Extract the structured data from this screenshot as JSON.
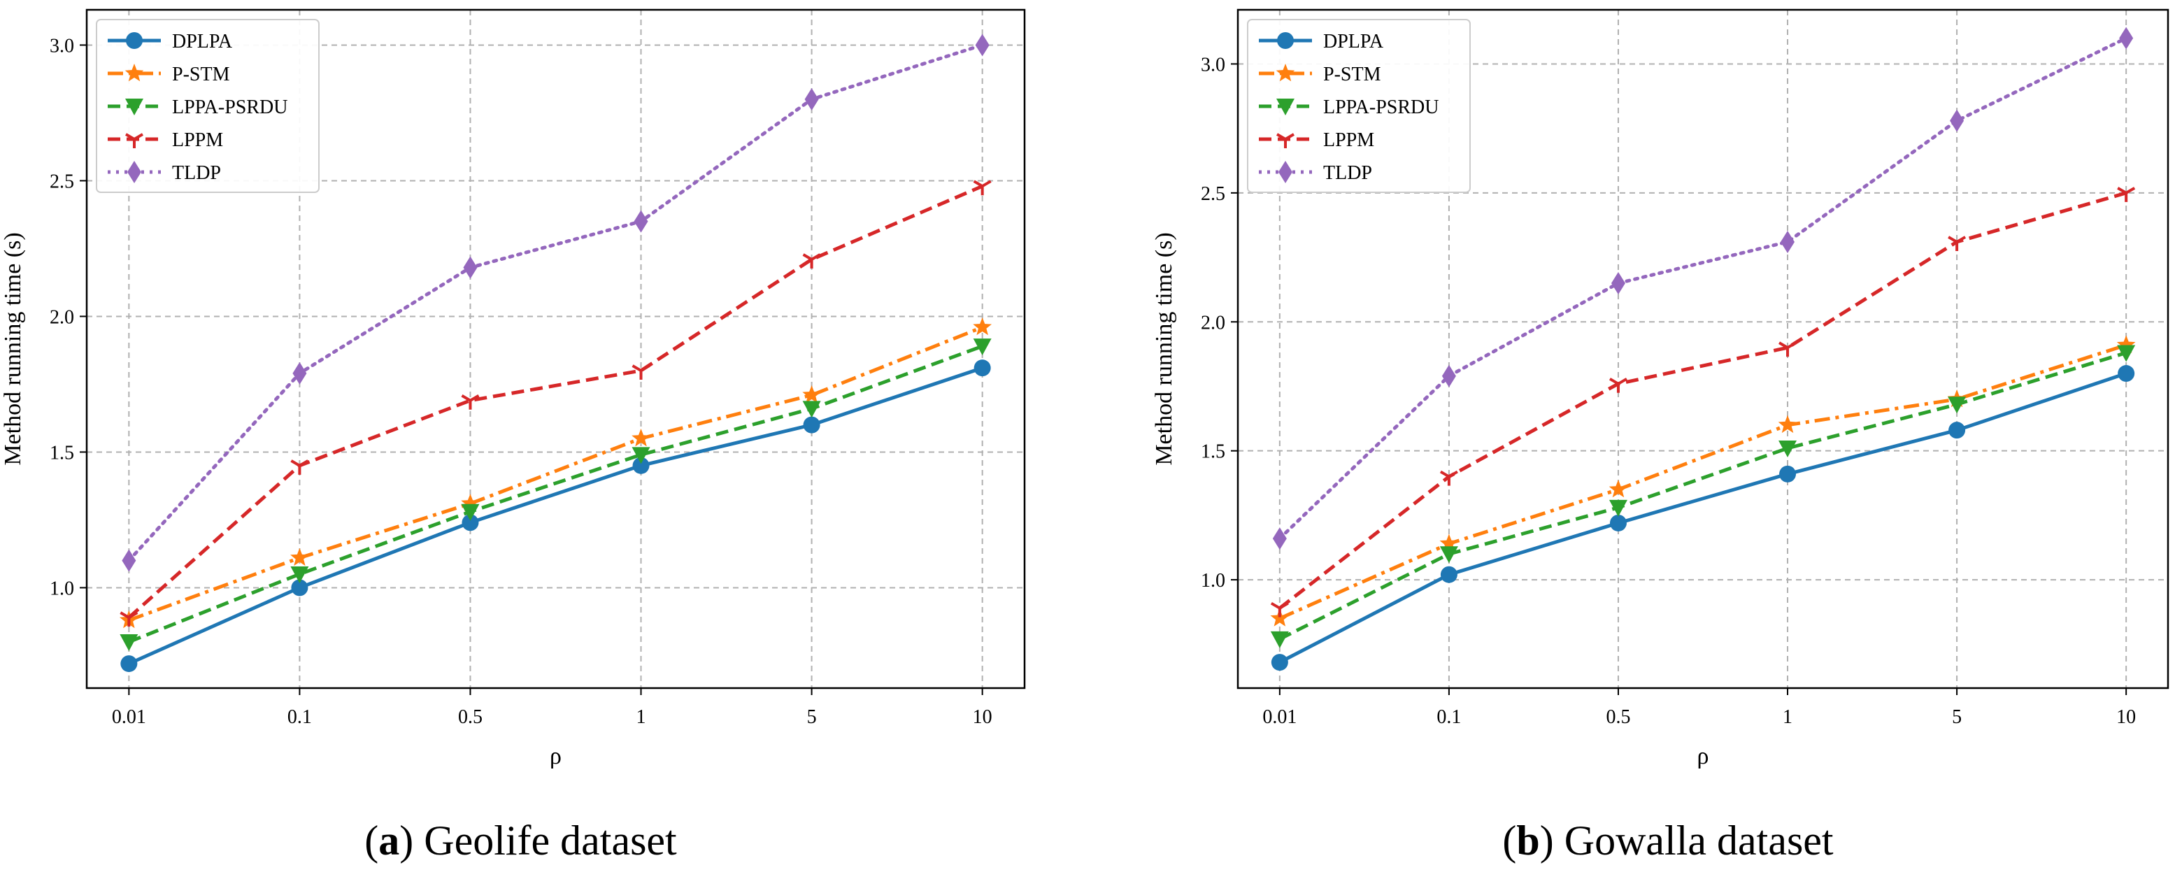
{
  "chart_data": [
    {
      "type": "line",
      "x": [
        "0.01",
        "0.1",
        "0.5",
        "1",
        "5",
        "10"
      ],
      "xlabel": "ρ",
      "ylabel": "Method running time (s)",
      "ylim": [
        0.63,
        3.13
      ],
      "yticks": [
        "1.0",
        "1.5",
        "2.0",
        "2.5",
        "3.0"
      ],
      "grid": true,
      "legend": "top-left",
      "caption": {
        "letter": "a",
        "text": "Geolife dataset"
      },
      "series": [
        {
          "name": "DPLPA",
          "values": [
            0.72,
            1.0,
            1.24,
            1.45,
            1.6,
            1.81
          ],
          "color": "#1f77b4",
          "marker": "circle",
          "line": "solid"
        },
        {
          "name": "P-STM",
          "values": [
            0.88,
            1.11,
            1.31,
            1.55,
            1.71,
            1.96
          ],
          "color": "#ff7f0e",
          "marker": "star",
          "line": "dashdot"
        },
        {
          "name": "LPPA-PSRDU",
          "values": [
            0.8,
            1.05,
            1.28,
            1.49,
            1.66,
            1.89
          ],
          "color": "#2ca02c",
          "marker": "triangle-down",
          "line": "dashed"
        },
        {
          "name": "LPPM",
          "values": [
            0.89,
            1.45,
            1.69,
            1.8,
            2.21,
            2.48
          ],
          "color": "#d62728",
          "marker": "tri-down",
          "line": "dashed"
        },
        {
          "name": "TLDP",
          "values": [
            1.1,
            1.79,
            2.18,
            2.35,
            2.8,
            3.0
          ],
          "color": "#9467bd",
          "marker": "thin-diamond",
          "line": "dotted"
        }
      ]
    },
    {
      "type": "line",
      "x": [
        "0.01",
        "0.1",
        "0.5",
        "1",
        "5",
        "10"
      ],
      "xlabel": "ρ",
      "ylabel": "Method running time (s)",
      "ylim": [
        0.58,
        3.21
      ],
      "yticks": [
        "1.0",
        "1.5",
        "2.0",
        "2.5",
        "3.0"
      ],
      "grid": true,
      "legend": "top-left",
      "caption": {
        "letter": "b",
        "text": "Gowalla dataset"
      },
      "series": [
        {
          "name": "DPLPA",
          "values": [
            0.68,
            1.02,
            1.22,
            1.41,
            1.58,
            1.8
          ],
          "color": "#1f77b4",
          "marker": "circle",
          "line": "solid"
        },
        {
          "name": "P-STM",
          "values": [
            0.85,
            1.14,
            1.35,
            1.6,
            1.7,
            1.91
          ],
          "color": "#ff7f0e",
          "marker": "star",
          "line": "dashdot"
        },
        {
          "name": "LPPA-PSRDU",
          "values": [
            0.77,
            1.1,
            1.28,
            1.51,
            1.68,
            1.88
          ],
          "color": "#2ca02c",
          "marker": "triangle-down",
          "line": "dashed"
        },
        {
          "name": "LPPM",
          "values": [
            0.89,
            1.4,
            1.76,
            1.9,
            2.31,
            2.5
          ],
          "color": "#d62728",
          "marker": "tri-down",
          "line": "dashed"
        },
        {
          "name": "TLDP",
          "values": [
            1.16,
            1.79,
            2.15,
            2.31,
            2.78,
            3.1
          ],
          "color": "#9467bd",
          "marker": "thin-diamond",
          "line": "dotted"
        }
      ]
    }
  ]
}
